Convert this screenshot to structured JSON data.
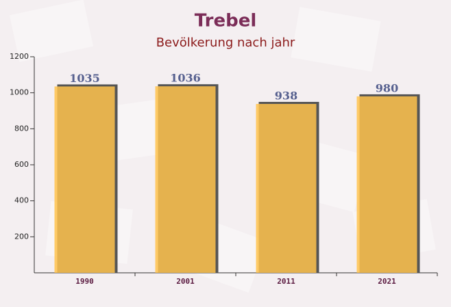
{
  "chart_data": {
    "type": "bar",
    "title": "Trebel",
    "subtitle": "Bevölkerung nach jahr",
    "categories": [
      "1990",
      "2001",
      "2011",
      "2021"
    ],
    "values": [
      1035,
      1036,
      938,
      980
    ],
    "color": "#ffc34d",
    "ylim": [
      0,
      1200
    ],
    "yticks": [
      200,
      400,
      600,
      800,
      1000,
      1200
    ]
  }
}
